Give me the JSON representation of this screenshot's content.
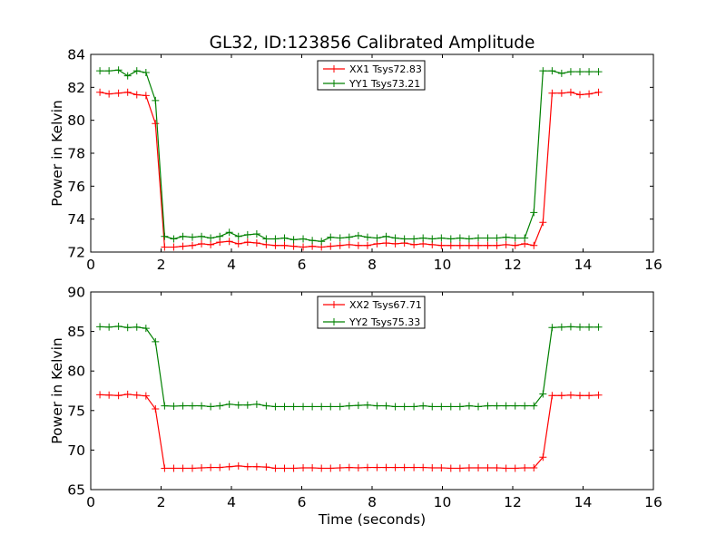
{
  "figure": {
    "title": "GL32, ID:123856 Calibrated Amplitude",
    "xlabel": "Time (seconds)"
  },
  "colors": {
    "red": "#ff0000",
    "green": "#008000",
    "axis": "#000000",
    "background": "#ffffff"
  },
  "chart_data": [
    {
      "type": "line",
      "title": "GL32, ID:123856 Calibrated Amplitude",
      "xlabel": "",
      "ylabel": "Power in Kelvin",
      "xlim": [
        0,
        16
      ],
      "ylim": [
        72,
        84
      ],
      "xticks": [
        0,
        2,
        4,
        6,
        8,
        10,
        12,
        14,
        16
      ],
      "yticks": [
        72,
        74,
        76,
        78,
        80,
        82,
        84
      ],
      "grid": false,
      "legend": "top-center",
      "marker": "+",
      "x": [
        0.26,
        0.52,
        0.79,
        1.05,
        1.31,
        1.57,
        1.84,
        2.1,
        2.36,
        2.62,
        2.89,
        3.15,
        3.41,
        3.67,
        3.94,
        4.2,
        4.46,
        4.72,
        4.99,
        5.25,
        5.51,
        5.77,
        6.04,
        6.3,
        6.56,
        6.82,
        7.09,
        7.35,
        7.61,
        7.87,
        8.14,
        8.4,
        8.66,
        8.92,
        9.19,
        9.45,
        9.71,
        9.97,
        10.24,
        10.5,
        10.76,
        11.02,
        11.29,
        11.55,
        11.81,
        12.07,
        12.34,
        12.6,
        12.86,
        13.12,
        13.39,
        13.65,
        13.91,
        14.17,
        14.44
      ],
      "series": [
        {
          "name": "XX1 Tsys72.83",
          "color": "#ff0000",
          "values": [
            81.7,
            81.6,
            81.65,
            81.7,
            81.55,
            81.5,
            79.8,
            72.3,
            72.3,
            72.35,
            72.4,
            72.5,
            72.45,
            72.6,
            72.65,
            72.5,
            72.6,
            72.55,
            72.45,
            72.4,
            72.4,
            72.35,
            72.3,
            72.35,
            72.3,
            72.35,
            72.4,
            72.45,
            72.4,
            72.4,
            72.5,
            72.55,
            72.5,
            72.55,
            72.45,
            72.5,
            72.45,
            72.4,
            72.4,
            72.4,
            72.4,
            72.4,
            72.4,
            72.4,
            72.45,
            72.4,
            72.5,
            72.4,
            73.8,
            81.65,
            81.65,
            81.7,
            81.55,
            81.6,
            81.7
          ]
        },
        {
          "name": "YY1 Tsys73.21",
          "color": "#008000",
          "values": [
            83.0,
            83.0,
            83.05,
            82.7,
            83.0,
            82.9,
            81.2,
            72.95,
            72.8,
            72.95,
            72.9,
            72.95,
            72.85,
            72.95,
            73.2,
            72.95,
            73.05,
            73.1,
            72.8,
            72.8,
            72.85,
            72.75,
            72.8,
            72.7,
            72.65,
            72.9,
            72.85,
            72.9,
            73.0,
            72.9,
            72.85,
            72.95,
            72.85,
            72.8,
            72.8,
            72.85,
            72.8,
            72.85,
            72.8,
            72.85,
            72.8,
            72.85,
            72.85,
            72.85,
            72.9,
            72.85,
            72.85,
            74.4,
            83.0,
            83.0,
            82.85,
            82.95,
            82.95,
            82.95,
            82.95
          ]
        }
      ]
    },
    {
      "type": "line",
      "title": "",
      "xlabel": "Time (seconds)",
      "ylabel": "Power in Kelvin",
      "xlim": [
        0,
        16
      ],
      "ylim": [
        65,
        90
      ],
      "xticks": [
        0,
        2,
        4,
        6,
        8,
        10,
        12,
        14,
        16
      ],
      "yticks": [
        65,
        70,
        75,
        80,
        85,
        90
      ],
      "grid": false,
      "legend": "top-center",
      "marker": "+",
      "x": [
        0.26,
        0.52,
        0.79,
        1.05,
        1.31,
        1.57,
        1.84,
        2.1,
        2.36,
        2.62,
        2.89,
        3.15,
        3.41,
        3.67,
        3.94,
        4.2,
        4.46,
        4.72,
        4.99,
        5.25,
        5.51,
        5.77,
        6.04,
        6.3,
        6.56,
        6.82,
        7.09,
        7.35,
        7.61,
        7.87,
        8.14,
        8.4,
        8.66,
        8.92,
        9.19,
        9.45,
        9.71,
        9.97,
        10.24,
        10.5,
        10.76,
        11.02,
        11.29,
        11.55,
        11.81,
        12.07,
        12.34,
        12.6,
        12.86,
        13.12,
        13.39,
        13.65,
        13.91,
        14.17,
        14.44
      ],
      "series": [
        {
          "name": "XX2 Tsys67.71",
          "color": "#ff0000",
          "values": [
            77.0,
            76.95,
            76.9,
            77.05,
            76.95,
            76.85,
            75.2,
            67.7,
            67.7,
            67.7,
            67.7,
            67.75,
            67.8,
            67.8,
            67.9,
            68.0,
            67.9,
            67.9,
            67.85,
            67.7,
            67.7,
            67.7,
            67.75,
            67.75,
            67.7,
            67.7,
            67.75,
            67.8,
            67.75,
            67.8,
            67.8,
            67.8,
            67.8,
            67.8,
            67.8,
            67.8,
            67.75,
            67.75,
            67.7,
            67.7,
            67.75,
            67.75,
            67.75,
            67.75,
            67.7,
            67.7,
            67.75,
            67.75,
            69.1,
            76.9,
            76.9,
            76.95,
            76.9,
            76.9,
            76.95
          ]
        },
        {
          "name": "YY2 Tsys75.33",
          "color": "#008000",
          "values": [
            85.6,
            85.55,
            85.65,
            85.5,
            85.55,
            85.4,
            83.7,
            75.6,
            75.55,
            75.6,
            75.6,
            75.6,
            75.5,
            75.6,
            75.8,
            75.7,
            75.7,
            75.8,
            75.6,
            75.5,
            75.5,
            75.5,
            75.5,
            75.5,
            75.5,
            75.5,
            75.5,
            75.6,
            75.65,
            75.7,
            75.6,
            75.6,
            75.5,
            75.5,
            75.5,
            75.6,
            75.5,
            75.5,
            75.5,
            75.5,
            75.6,
            75.5,
            75.6,
            75.6,
            75.6,
            75.6,
            75.6,
            75.6,
            77.1,
            85.5,
            85.55,
            85.6,
            85.55,
            85.55,
            85.55
          ]
        }
      ]
    }
  ]
}
